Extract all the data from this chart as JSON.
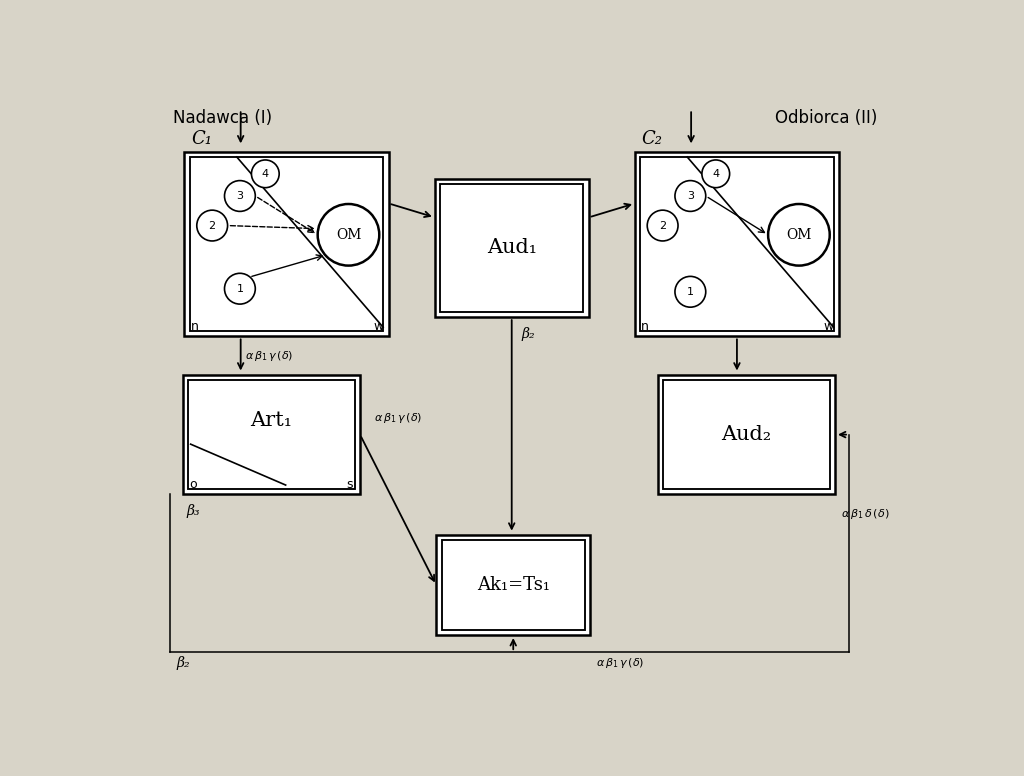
{
  "bg_color": "#d8d4c8",
  "title_left": "Nadawca (I)",
  "title_right": "Odbiorca (II)",
  "c1_label": "C₁",
  "c2_label": "C₂",
  "aud1_label": "Aud₁",
  "aud2_label": "Aud₂",
  "art1_label": "Art₁",
  "ak1ts1_label": "Ak₁=Ts₁",
  "om_label": "OM",
  "label_n": "n",
  "label_w": "w",
  "label_o": "o",
  "label_s": "s",
  "beta2_center": "β₂",
  "beta3": "β₃",
  "beta2_bottom": "β₂",
  "abgd1": "α β₁ γ (δ)",
  "abgd2": "α β₁ γ (δ)",
  "abgd3": "α β₁ γ (δ)",
  "abd_right": "α β₁ δ (δ)"
}
